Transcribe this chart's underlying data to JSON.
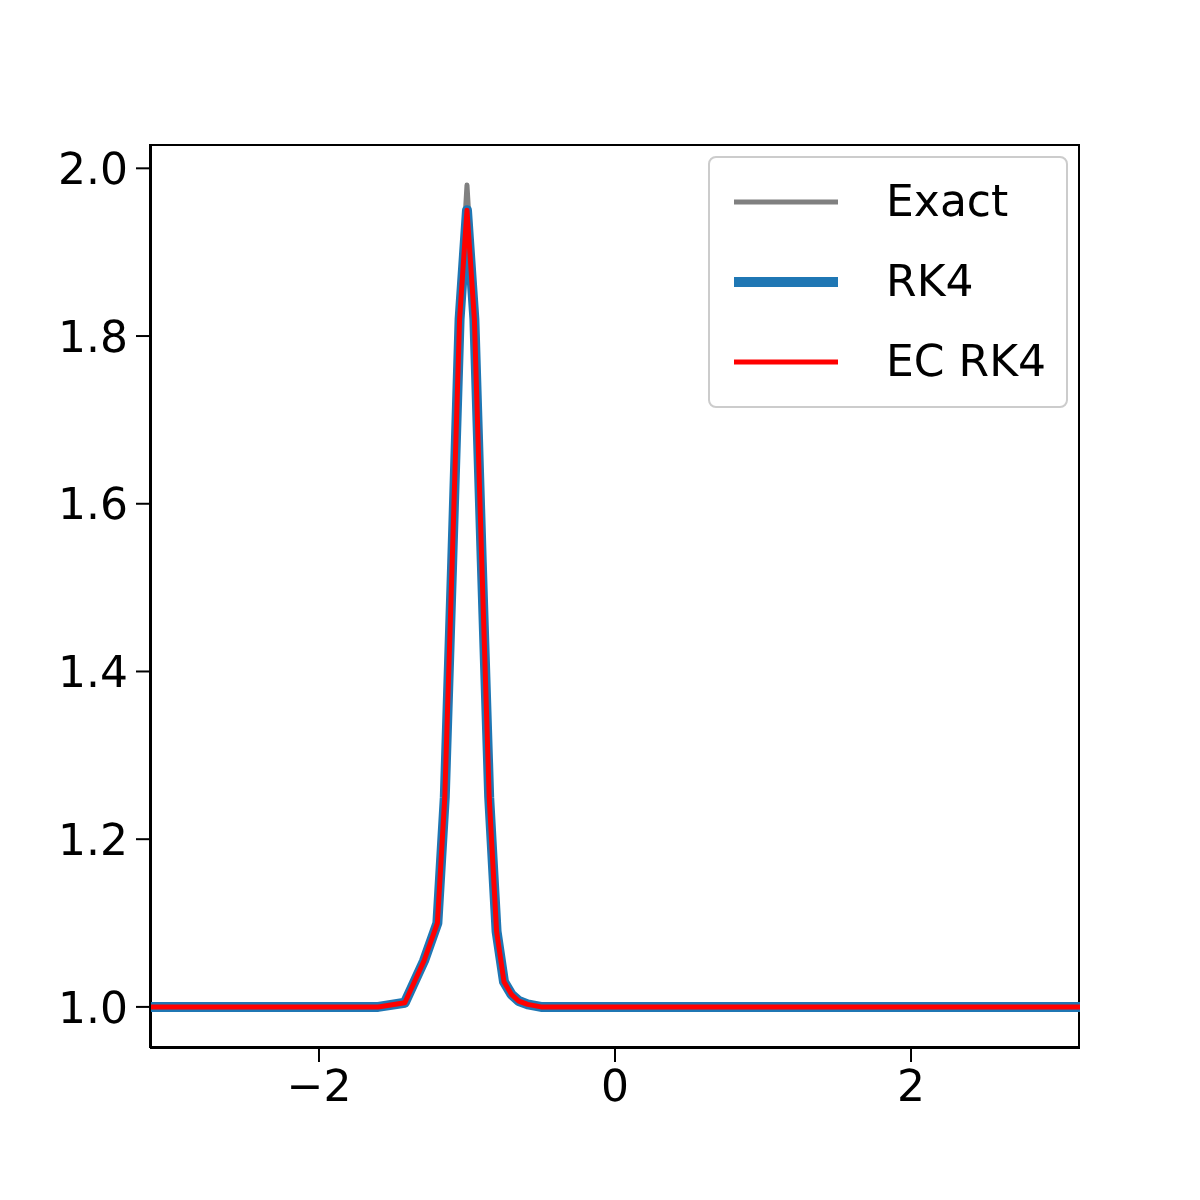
{
  "chart_data": {
    "type": "line",
    "xlim": [
      -3.14159,
      3.14159
    ],
    "xticks": [
      {
        "value": -2,
        "label": "−2"
      },
      0,
      2
    ],
    "ylim": [
      0.951,
      2.029
    ],
    "yticks": [
      {
        "value": 1,
        "label": "1.0"
      },
      {
        "value": 1.2,
        "label": "1.2"
      },
      {
        "value": 1.4,
        "label": "1.4"
      },
      {
        "value": 1.6,
        "label": "1.6"
      },
      {
        "value": 1.8,
        "label": "1.8"
      },
      {
        "value": 2,
        "label": "2.0"
      }
    ],
    "grid": false,
    "legend": "top right",
    "marker": "none",
    "line_style": "solid",
    "series": [
      {
        "name": "Exact",
        "color": "#808080",
        "x": [
          -1.05,
          -1.0,
          -0.95
        ],
        "values": [
          1.83,
          1.98,
          1.83
        ]
      },
      {
        "name": "RK4",
        "color": "#1f77b4",
        "x": [
          -3.14159,
          -1.6,
          -1.42,
          -1.29,
          -1.2,
          -1.15,
          -1.1,
          -1.05,
          -1.0,
          -0.95,
          -0.9,
          -0.85,
          -0.8,
          -0.75,
          -0.7,
          -0.65,
          -0.59,
          -0.5,
          3.14159
        ],
        "values": [
          1.0,
          1.0,
          1.005,
          1.055,
          1.1,
          1.25,
          1.53,
          1.82,
          1.95,
          1.82,
          1.53,
          1.25,
          1.09,
          1.03,
          1.015,
          1.007,
          1.003,
          1.0,
          1.0
        ]
      },
      {
        "name": "EC RK4",
        "color": "#ff0000",
        "x": [
          -3.14159,
          -1.6,
          -1.42,
          -1.29,
          -1.2,
          -1.15,
          -1.1,
          -1.05,
          -1.0,
          -0.95,
          -0.9,
          -0.85,
          -0.8,
          -0.75,
          -0.7,
          -0.65,
          -0.59,
          -0.5,
          3.14159
        ],
        "values": [
          1.0,
          1.0,
          1.005,
          1.055,
          1.1,
          1.25,
          1.53,
          1.82,
          1.95,
          1.82,
          1.53,
          1.25,
          1.09,
          1.03,
          1.015,
          1.007,
          1.003,
          1.0,
          1.0
        ]
      }
    ]
  }
}
